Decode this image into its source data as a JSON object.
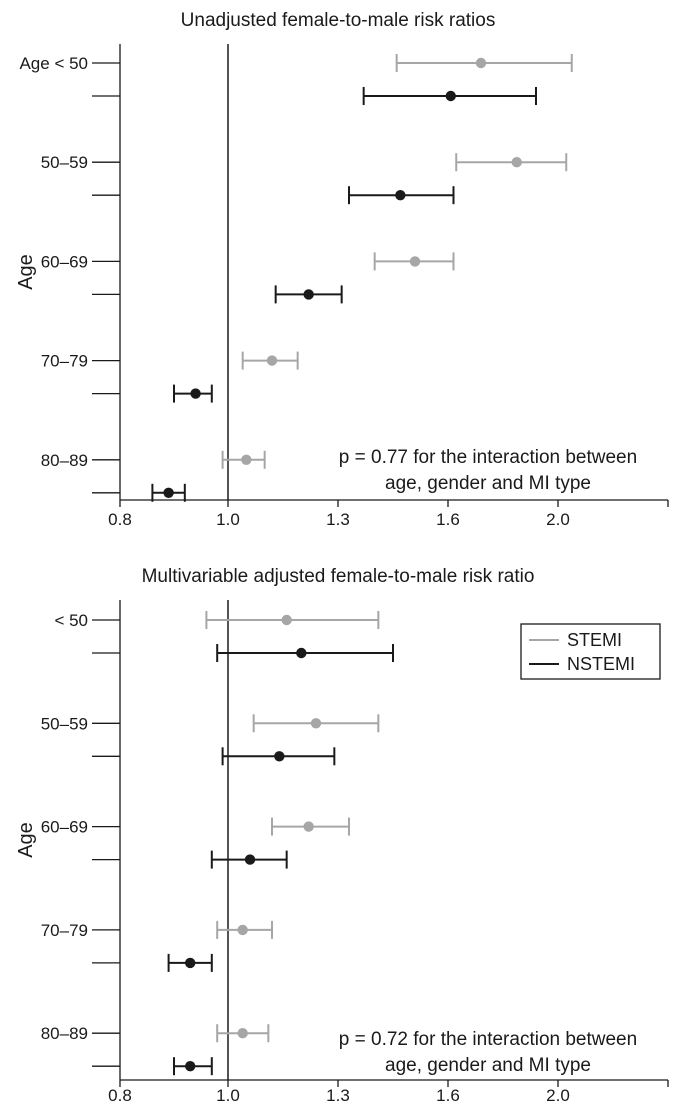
{
  "chart_data": [
    {
      "type": "scatter",
      "title": "Unadjusted female-to-male risk ratios",
      "ylabel": "Age",
      "xlabel": "",
      "x_ticks": [
        "0.8",
        "1.0",
        "1.3",
        "1.6",
        "2.0"
      ],
      "categories": [
        "Age < 50",
        "50–59",
        "60–69",
        "70–79",
        "80–89"
      ],
      "reference_line": 1.0,
      "note_lines": [
        "p = 0.77 for the interaction between",
        "age, gender and MI type"
      ],
      "legend": false,
      "series": [
        {
          "name": "STEMI",
          "color": "#a6a6a6",
          "points": [
            {
              "estimate": 1.72,
              "lower": 1.46,
              "upper": 2.05
            },
            {
              "estimate": 1.85,
              "lower": 1.63,
              "upper": 2.03
            },
            {
              "estimate": 1.51,
              "lower": 1.4,
              "upper": 1.62
            },
            {
              "estimate": 1.12,
              "lower": 1.04,
              "upper": 1.19
            },
            {
              "estimate": 1.05,
              "lower": 0.99,
              "upper": 1.1
            }
          ]
        },
        {
          "name": "NSTEMI",
          "color": "#1a1a1a",
          "points": [
            {
              "estimate": 1.61,
              "lower": 1.37,
              "upper": 1.92
            },
            {
              "estimate": 1.47,
              "lower": 1.33,
              "upper": 1.62
            },
            {
              "estimate": 1.22,
              "lower": 1.13,
              "upper": 1.31
            },
            {
              "estimate": 0.94,
              "lower": 0.9,
              "upper": 0.97
            },
            {
              "estimate": 0.89,
              "lower": 0.86,
              "upper": 0.92
            }
          ]
        }
      ]
    },
    {
      "type": "scatter",
      "title": "Multivariable adjusted female-to-male risk ratio",
      "ylabel": "Age",
      "xlabel": "",
      "x_ticks": [
        "0.8",
        "1.0",
        "1.3",
        "1.6",
        "2.0"
      ],
      "categories": [
        "< 50",
        "50–59",
        "60–69",
        "70–79",
        "80–89"
      ],
      "reference_line": 1.0,
      "note_lines": [
        "p = 0.72 for the interaction between",
        "age, gender and MI type"
      ],
      "legend": true,
      "legend_position": "top-right",
      "series": [
        {
          "name": "STEMI",
          "color": "#a6a6a6",
          "points": [
            {
              "estimate": 1.16,
              "lower": 0.96,
              "upper": 1.41
            },
            {
              "estimate": 1.24,
              "lower": 1.07,
              "upper": 1.41
            },
            {
              "estimate": 1.22,
              "lower": 1.12,
              "upper": 1.33
            },
            {
              "estimate": 1.04,
              "lower": 0.98,
              "upper": 1.12
            },
            {
              "estimate": 1.04,
              "lower": 0.98,
              "upper": 1.11
            }
          ]
        },
        {
          "name": "NSTEMI",
          "color": "#1a1a1a",
          "points": [
            {
              "estimate": 1.2,
              "lower": 0.98,
              "upper": 1.45
            },
            {
              "estimate": 1.14,
              "lower": 0.99,
              "upper": 1.29
            },
            {
              "estimate": 1.06,
              "lower": 0.97,
              "upper": 1.16
            },
            {
              "estimate": 0.93,
              "lower": 0.89,
              "upper": 0.97
            },
            {
              "estimate": 0.93,
              "lower": 0.9,
              "upper": 0.97
            }
          ]
        }
      ]
    }
  ]
}
